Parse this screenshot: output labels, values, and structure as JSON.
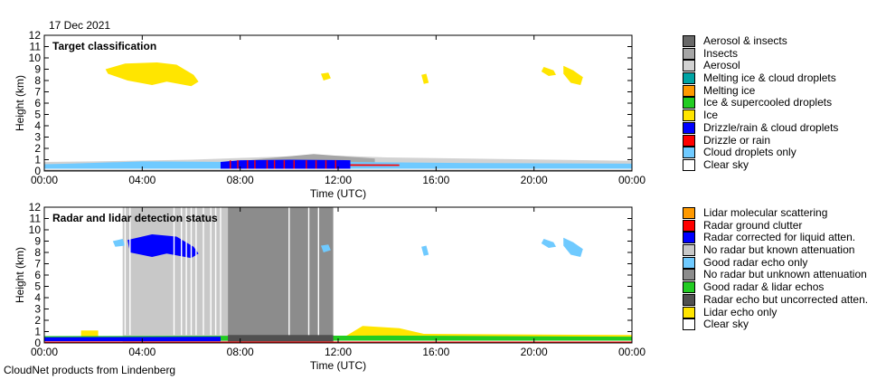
{
  "date_label": "17 Dec 2021",
  "footer": "CloudNet products from Lindenberg",
  "chart_data": [
    {
      "type": "heatmap",
      "title": "Target classification",
      "xlabel": "Time (UTC)",
      "ylabel": "Height (km)",
      "xlim": [
        0,
        24
      ],
      "ylim": [
        0,
        12
      ],
      "x_ticks": [
        "00:00",
        "04:00",
        "08:00",
        "12:00",
        "16:00",
        "20:00",
        "00:00"
      ],
      "y_ticks": [
        "0",
        "1",
        "2",
        "3",
        "4",
        "5",
        "6",
        "7",
        "8",
        "9",
        "10",
        "11",
        "12"
      ],
      "legend": [
        {
          "label": "Aerosol & insects",
          "color": "#686868"
        },
        {
          "label": "Insects",
          "color": "#a6a6a6"
        },
        {
          "label": "Aerosol",
          "color": "#d2d2d2"
        },
        {
          "label": "Melting ice & cloud droplets",
          "color": "#00a4a4"
        },
        {
          "label": "Melting ice",
          "color": "#ff9900"
        },
        {
          "label": "Ice & supercooled droplets",
          "color": "#22cc22"
        },
        {
          "label": "Ice",
          "color": "#ffe500"
        },
        {
          "label": "Drizzle/rain & cloud droplets",
          "color": "#0000ff"
        },
        {
          "label": "Drizzle or rain",
          "color": "#ff0000"
        },
        {
          "label": "Cloud droplets only",
          "color": "#6fcaff"
        },
        {
          "label": "Clear sky",
          "color": "#ffffff"
        }
      ],
      "regions": [
        {
          "color": "#ffe500",
          "polygon": [
            [
              2.5,
              9.0
            ],
            [
              3.3,
              9.5
            ],
            [
              4.6,
              9.6
            ],
            [
              5.4,
              9.4
            ],
            [
              6.1,
              8.5
            ],
            [
              6.3,
              7.9
            ],
            [
              6.0,
              7.5
            ],
            [
              5.0,
              7.9
            ],
            [
              4.4,
              7.6
            ],
            [
              3.4,
              8.0
            ],
            [
              2.6,
              8.6
            ]
          ]
        },
        {
          "color": "#ffe500",
          "polygon": [
            [
              11.3,
              8.6
            ],
            [
              11.6,
              8.7
            ],
            [
              11.7,
              8.2
            ],
            [
              11.4,
              8.0
            ]
          ]
        },
        {
          "color": "#ffe500",
          "polygon": [
            [
              15.4,
              8.5
            ],
            [
              15.6,
              8.6
            ],
            [
              15.7,
              7.8
            ],
            [
              15.5,
              7.7
            ]
          ]
        },
        {
          "color": "#ffe500",
          "polygon": [
            [
              20.4,
              9.2
            ],
            [
              20.8,
              8.9
            ],
            [
              20.9,
              8.5
            ],
            [
              20.6,
              8.4
            ],
            [
              20.3,
              8.8
            ]
          ]
        },
        {
          "color": "#ffe500",
          "polygon": [
            [
              21.2,
              9.3
            ],
            [
              21.6,
              8.9
            ],
            [
              22.0,
              8.3
            ],
            [
              21.9,
              7.6
            ],
            [
              21.5,
              7.8
            ],
            [
              21.2,
              8.6
            ]
          ]
        },
        {
          "color": "#d2d2d2",
          "polygon": [
            [
              0.0,
              0.3
            ],
            [
              24.0,
              0.3
            ],
            [
              24.0,
              0.9
            ],
            [
              14.0,
              1.2
            ],
            [
              12.0,
              1.35
            ],
            [
              10.0,
              1.3
            ],
            [
              6.0,
              1.0
            ],
            [
              2.0,
              0.85
            ],
            [
              0.0,
              0.8
            ]
          ]
        },
        {
          "color": "#a6a6a6",
          "polygon": [
            [
              7.0,
              0.6
            ],
            [
              13.5,
              0.6
            ],
            [
              13.5,
              1.1
            ],
            [
              11.0,
              1.5
            ],
            [
              9.0,
              1.1
            ]
          ]
        },
        {
          "color": "#6fcaff",
          "polygon": [
            [
              0.0,
              0.2
            ],
            [
              24.0,
              0.2
            ],
            [
              24.0,
              0.65
            ],
            [
              18.0,
              0.7
            ],
            [
              12.0,
              0.8
            ],
            [
              8.0,
              0.8
            ],
            [
              4.0,
              0.85
            ],
            [
              1.0,
              0.65
            ],
            [
              0.0,
              0.6
            ]
          ]
        },
        {
          "color": "#ff0000",
          "polygon": [
            [
              7.5,
              0.45
            ],
            [
              14.5,
              0.45
            ],
            [
              14.5,
              0.58
            ],
            [
              7.5,
              0.65
            ]
          ]
        },
        {
          "color": "#0000ff",
          "polygon": [
            [
              7.2,
              0.2
            ],
            [
              12.5,
              0.2
            ],
            [
              12.5,
              0.95
            ],
            [
              10.0,
              1.0
            ],
            [
              8.0,
              0.95
            ],
            [
              7.2,
              0.8
            ]
          ]
        },
        {
          "color": "#686868",
          "polygon": [
            [
              0.0,
              0.0
            ],
            [
              24.0,
              0.0
            ],
            [
              24.0,
              0.1
            ],
            [
              0.0,
              0.1
            ]
          ]
        }
      ],
      "stripes": {
        "color": "#ff0000",
        "x": [
          7.6,
          7.9,
          8.3,
          8.6,
          9.1,
          9.4,
          9.8,
          10.2,
          10.7,
          11.1,
          11.5,
          11.9
        ],
        "y0": 0.2,
        "y1": 0.95
      }
    },
    {
      "type": "heatmap",
      "title": "Radar and lidar detection status",
      "xlabel": "Time (UTC)",
      "ylabel": "Height (km)",
      "xlim": [
        0,
        24
      ],
      "ylim": [
        0,
        12
      ],
      "x_ticks": [
        "00:00",
        "04:00",
        "08:00",
        "12:00",
        "16:00",
        "20:00",
        "00:00"
      ],
      "y_ticks": [
        "0",
        "1",
        "2",
        "3",
        "4",
        "5",
        "6",
        "7",
        "8",
        "9",
        "10",
        "11",
        "12"
      ],
      "legend": [
        {
          "label": "Lidar molecular scattering",
          "color": "#ff9900"
        },
        {
          "label": "Radar ground clutter",
          "color": "#ff0000"
        },
        {
          "label": "Radar corrected for liquid atten.",
          "color": "#0000ff"
        },
        {
          "label": "No radar but known attenuation",
          "color": "#c8c8c8"
        },
        {
          "label": "Good radar echo only",
          "color": "#6fcaff"
        },
        {
          "label": "No radar but unknown attenuation",
          "color": "#8c8c8c"
        },
        {
          "label": "Good radar & lidar echos",
          "color": "#22cc22"
        },
        {
          "label": "Radar echo but uncorrected atten.",
          "color": "#505050"
        },
        {
          "label": "Lidar echo only",
          "color": "#ffe500"
        },
        {
          "label": "Clear sky",
          "color": "#ffffff"
        }
      ],
      "regions": [
        {
          "color": "#c8c8c8",
          "polygon": [
            [
              3.2,
              0.0
            ],
            [
              7.5,
              0.0
            ],
            [
              7.5,
              12.0
            ],
            [
              3.2,
              12.0
            ]
          ]
        },
        {
          "color": "#8c8c8c",
          "polygon": [
            [
              7.5,
              0.0
            ],
            [
              11.8,
              0.0
            ],
            [
              11.8,
              12.0
            ],
            [
              7.5,
              12.0
            ]
          ]
        },
        {
          "color": "#6fcaff",
          "polygon": [
            [
              2.8,
              9.0
            ],
            [
              3.2,
              9.2
            ],
            [
              3.3,
              8.6
            ],
            [
              2.9,
              8.5
            ]
          ]
        },
        {
          "color": "#0000ff",
          "polygon": [
            [
              3.4,
              9.1
            ],
            [
              4.4,
              9.6
            ],
            [
              5.4,
              9.4
            ],
            [
              6.1,
              8.5
            ],
            [
              6.3,
              7.9
            ],
            [
              6.0,
              7.5
            ],
            [
              5.0,
              7.9
            ],
            [
              4.4,
              7.6
            ],
            [
              3.5,
              8.0
            ]
          ]
        },
        {
          "color": "#6fcaff",
          "polygon": [
            [
              11.3,
              8.6
            ],
            [
              11.6,
              8.7
            ],
            [
              11.7,
              8.2
            ],
            [
              11.4,
              8.0
            ]
          ]
        },
        {
          "color": "#6fcaff",
          "polygon": [
            [
              15.4,
              8.5
            ],
            [
              15.6,
              8.6
            ],
            [
              15.7,
              7.8
            ],
            [
              15.5,
              7.7
            ]
          ]
        },
        {
          "color": "#6fcaff",
          "polygon": [
            [
              20.4,
              9.2
            ],
            [
              20.8,
              8.9
            ],
            [
              20.9,
              8.5
            ],
            [
              20.6,
              8.4
            ],
            [
              20.3,
              8.8
            ]
          ]
        },
        {
          "color": "#6fcaff",
          "polygon": [
            [
              21.2,
              9.3
            ],
            [
              21.6,
              8.9
            ],
            [
              22.0,
              8.3
            ],
            [
              21.9,
              7.6
            ],
            [
              21.5,
              7.8
            ],
            [
              21.2,
              8.6
            ]
          ]
        },
        {
          "color": "#ffe500",
          "polygon": [
            [
              0.0,
              0.2
            ],
            [
              12.0,
              0.2
            ],
            [
              13.0,
              1.5
            ],
            [
              14.5,
              1.3
            ],
            [
              15.5,
              0.8
            ],
            [
              24.0,
              0.7
            ],
            [
              24.0,
              0.2
            ]
          ]
        },
        {
          "color": "#ffe500",
          "polygon": [
            [
              1.5,
              0.4
            ],
            [
              2.2,
              0.4
            ],
            [
              2.2,
              1.1
            ],
            [
              1.5,
              1.1
            ]
          ]
        },
        {
          "color": "#22cc22",
          "polygon": [
            [
              0.0,
              0.2
            ],
            [
              24.0,
              0.2
            ],
            [
              24.0,
              0.55
            ],
            [
              14.0,
              0.65
            ],
            [
              0.0,
              0.6
            ]
          ]
        },
        {
          "color": "#0000ff",
          "polygon": [
            [
              0.0,
              0.15
            ],
            [
              7.2,
              0.15
            ],
            [
              7.2,
              0.55
            ],
            [
              0.0,
              0.5
            ]
          ]
        },
        {
          "color": "#505050",
          "polygon": [
            [
              7.5,
              0.15
            ],
            [
              11.8,
              0.15
            ],
            [
              11.8,
              0.7
            ],
            [
              7.5,
              0.7
            ]
          ]
        },
        {
          "color": "#ff0000",
          "polygon": [
            [
              0.0,
              0.0
            ],
            [
              24.0,
              0.0
            ],
            [
              24.0,
              0.12
            ],
            [
              0.0,
              0.12
            ]
          ]
        }
      ],
      "stripes": {
        "color": "#ffffff",
        "x": [
          3.3,
          3.5,
          5.3,
          5.6,
          5.8,
          6.0,
          6.2,
          6.5,
          6.8,
          7.0,
          7.2,
          10.0,
          10.8,
          11.2
        ],
        "y0": 0.7,
        "y1": 12.0
      }
    }
  ]
}
